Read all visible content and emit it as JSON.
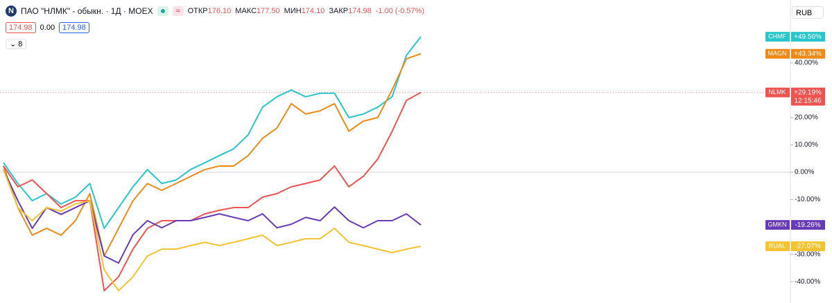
{
  "header": {
    "logo": "N",
    "title": "ПАО \"НЛМК\" - обыкн. · 1Д · MOEX",
    "open_label": "ОТКР",
    "open": "176.10",
    "high_label": "МАКС",
    "high": "177.50",
    "low_label": "МИН",
    "low": "174.10",
    "close_label": "ЗАКР",
    "close": "174.98",
    "change": "-1.00 (-0.57%)",
    "bid": "174.98",
    "spread": "0.00",
    "ask": "174.98",
    "indicators": "8",
    "currency": "RUB"
  },
  "chart_data": {
    "type": "line",
    "categories": [
      null,
      null,
      null,
      null,
      null,
      null,
      null,
      null,
      null,
      null,
      null,
      null,
      null,
      null,
      null,
      null,
      null,
      null,
      null,
      null,
      null,
      null,
      null,
      null,
      null,
      null,
      null,
      null,
      null,
      null
    ],
    "ylim": [
      -47.8,
      63
    ],
    "yticks": [
      {
        "value": -40,
        "label": "-40.00%"
      },
      {
        "value": -30,
        "label": "-30.00%"
      },
      {
        "value": -10,
        "label": "-10.00%"
      },
      {
        "value": 0,
        "label": "0.00%"
      },
      {
        "value": 10,
        "label": "10.00%"
      },
      {
        "value": 20,
        "label": "20.00%"
      },
      {
        "value": 40,
        "label": "40.00%"
      }
    ],
    "series": [
      {
        "name": "CHMF",
        "color": "#26c6cc",
        "last_label": "+49.56%",
        "values": [
          3.5,
          -4.1,
          -10.4,
          -7.8,
          -11.6,
          -9.1,
          -4.1,
          -20.5,
          -12.9,
          -5.3,
          1.0,
          -4.1,
          -2.8,
          1.0,
          3.5,
          6.1,
          8.6,
          13.7,
          23.8,
          27.6,
          30.1,
          27.6,
          28.9,
          28.9,
          20.0,
          21.3,
          23.8,
          27.6,
          42.8,
          49.56
        ]
      },
      {
        "name": "MAGN",
        "color": "#ef8a17",
        "last_label": "+43.34%",
        "values": [
          2.3,
          -12.9,
          -23.0,
          -20.5,
          -23.0,
          -17.7,
          -7.8,
          -30.6,
          -20.5,
          -10.4,
          -4.1,
          -6.6,
          -4.1,
          -1.5,
          1.0,
          2.3,
          2.3,
          6.1,
          12.4,
          16.2,
          25.1,
          21.3,
          22.5,
          25.1,
          15.0,
          18.7,
          20.0,
          30.1,
          41.5,
          43.34
        ]
      },
      {
        "name": "NLMK",
        "color": "#ef5350",
        "last_label": "+29.19%",
        "time": "12:15:46",
        "values": [
          2.3,
          -5.3,
          -2.8,
          -7.8,
          -12.9,
          -10.4,
          -10.4,
          -43.3,
          -38.2,
          -28.1,
          -20.5,
          -17.7,
          -17.7,
          -17.7,
          -15.2,
          -13.9,
          -12.9,
          -12.9,
          -9.1,
          -7.8,
          -5.3,
          -4.1,
          -2.8,
          2.3,
          -5.3,
          -1.5,
          4.8,
          14.9,
          26.3,
          29.19
        ]
      },
      {
        "name": "GMKN",
        "color": "#673ab7",
        "last_label": "-19.26%",
        "values": [
          1.0,
          -10.4,
          -20.5,
          -12.9,
          -15.4,
          -12.9,
          -10.4,
          -30.6,
          -33.2,
          -22.8,
          -17.7,
          -20.3,
          -17.7,
          -17.7,
          -16.5,
          -15.2,
          -16.5,
          -17.7,
          -15.2,
          -20.3,
          -19.0,
          -16.5,
          -17.7,
          -12.7,
          -17.7,
          -20.3,
          -17.7,
          -17.7,
          -15.2,
          -19.26
        ]
      },
      {
        "name": "RUAL",
        "color": "#f5c230",
        "last_label": "-27.07%",
        "values": [
          1.0,
          -12.9,
          -17.7,
          -12.9,
          -14.2,
          -11.6,
          -10.4,
          -35.7,
          -43.3,
          -38.2,
          -30.6,
          -28.1,
          -28.1,
          -26.8,
          -25.6,
          -26.8,
          -25.6,
          -24.3,
          -23.0,
          -26.8,
          -25.6,
          -24.3,
          -24.3,
          -20.5,
          -25.6,
          -26.8,
          -28.1,
          -29.4,
          -28.1,
          -27.07
        ]
      }
    ]
  }
}
